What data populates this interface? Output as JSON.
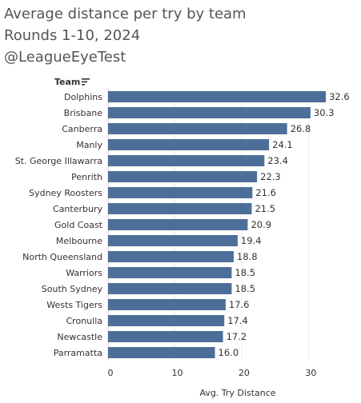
{
  "header": {
    "title_line1": "Average distance per try by team",
    "title_line2": "Rounds 1-10, 2024",
    "title_line3": "@LeagueEyeTest"
  },
  "icons": {
    "sort": "sort-descending-icon"
  },
  "chart_data": {
    "type": "bar",
    "orientation": "horizontal",
    "row_header": "Team",
    "categories": [
      "Dolphins",
      "Brisbane",
      "Canberra",
      "Manly",
      "St. George Illawarra",
      "Penrith",
      "Sydney Roosters",
      "Canterbury",
      "Gold Coast",
      "Melbourne",
      "North Queensland",
      "Warriors",
      "South Sydney",
      "Wests Tigers",
      "Cronulla",
      "Newcastle",
      "Parramatta"
    ],
    "values": [
      32.6,
      30.3,
      26.8,
      24.1,
      23.4,
      22.3,
      21.6,
      21.5,
      20.9,
      19.4,
      18.8,
      18.5,
      18.5,
      17.6,
      17.4,
      17.2,
      16.0
    ],
    "value_labels": [
      "32.6",
      "30.3",
      "26.8",
      "24.1",
      "23.4",
      "22.3",
      "21.6",
      "21.5",
      "20.9",
      "19.4",
      "18.8",
      "18.5",
      "18.5",
      "17.6",
      "17.4",
      "17.2",
      "16.0"
    ],
    "xlabel": "Avg. Try Distance",
    "xlim": [
      0,
      37.5
    ],
    "xticks": [
      0,
      10,
      20,
      30
    ],
    "bar_color": "#4e6e9a",
    "grid": true
  }
}
